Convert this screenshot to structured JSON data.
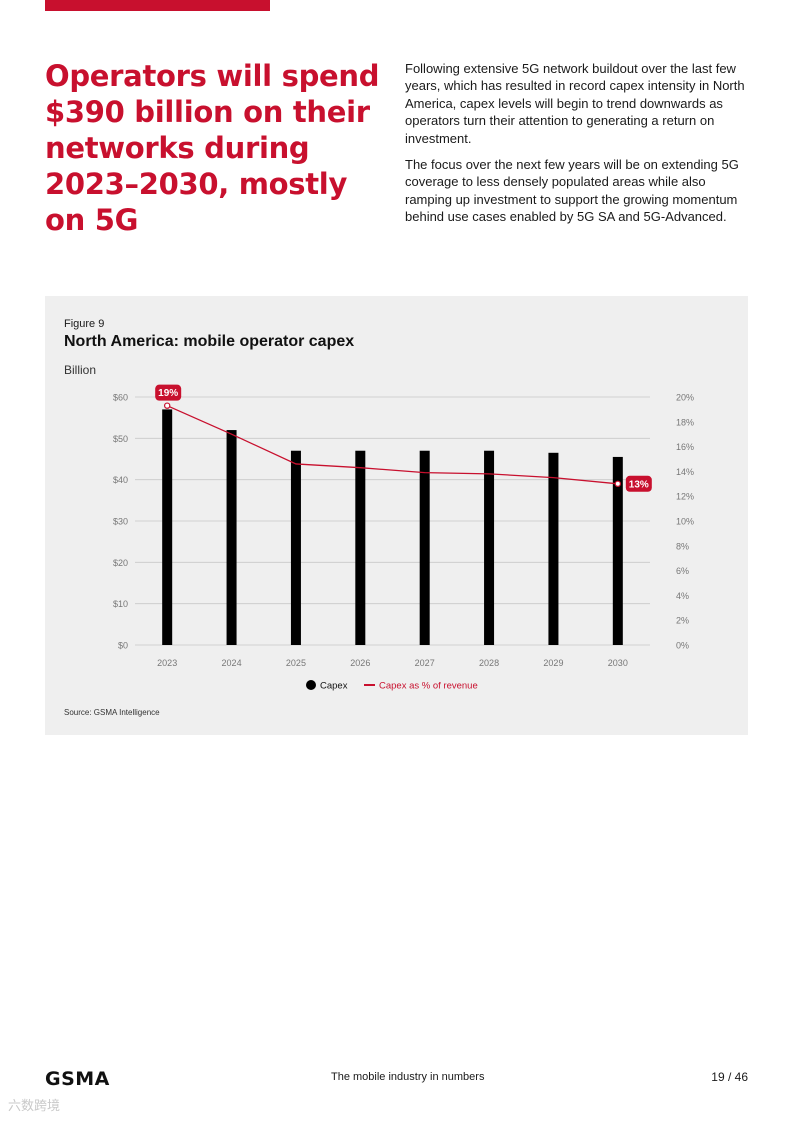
{
  "headline": "Operators will spend $390 billion on their networks during 2023–2030, mostly on 5G",
  "intro": {
    "paragraph_1": "Following extensive 5G network buildout over the last few years, which has resulted in record capex intensity in North America, capex levels will begin to trend downwards as operators turn their attention to generating a return on investment.",
    "paragraph_2": "The focus over the next few years will be on extending 5G coverage to less densely populated areas while also ramping up investment to support the growing momentum behind use cases enabled by 5G SA and 5G-Advanced."
  },
  "figure": {
    "label": "Figure 9",
    "title": "North America: mobile operator capex",
    "unit": "Billion",
    "source": "Source: GSMA Intelligence"
  },
  "chart_data": {
    "type": "bar",
    "title": "North America: mobile operator capex",
    "ylabel": "Billion",
    "categories": [
      "2023",
      "2024",
      "2025",
      "2026",
      "2027",
      "2028",
      "2029",
      "2030"
    ],
    "series": [
      {
        "name": "Capex",
        "type": "bar",
        "axis": "left",
        "color": "#000000",
        "values": [
          57,
          52,
          47,
          47,
          47,
          47,
          46.5,
          45.5
        ]
      },
      {
        "name": "Capex as % of revenue",
        "type": "line",
        "axis": "right",
        "color": "#c8102e",
        "values": [
          19.3,
          17.0,
          14.6,
          14.3,
          13.9,
          13.8,
          13.5,
          13.0
        ]
      }
    ],
    "y_left": {
      "min": 0,
      "max": 60,
      "ticks": [
        0,
        10,
        20,
        30,
        40,
        50,
        60
      ],
      "tick_labels": [
        "$0",
        "$10",
        "$20",
        "$30",
        "$40",
        "$50",
        "$60"
      ]
    },
    "y_right": {
      "min": 0,
      "max": 20,
      "ticks": [
        0,
        2,
        4,
        6,
        8,
        10,
        12,
        14,
        16,
        18,
        20
      ],
      "tick_labels": [
        "0%",
        "2%",
        "4%",
        "6%",
        "8%",
        "10%",
        "12%",
        "14%",
        "16%",
        "18%",
        "20%"
      ]
    },
    "annotations": [
      {
        "index": 0,
        "text": "19%"
      },
      {
        "index": 7,
        "text": "13%"
      }
    ],
    "legend": [
      "Capex",
      "Capex as % of revenue"
    ],
    "grid": true,
    "legend_position": "bottom-center"
  },
  "footer": {
    "logo": "GSMA",
    "center_text": "The mobile industry in numbers",
    "page": "19 / 46"
  },
  "watermark": "六数跨境"
}
